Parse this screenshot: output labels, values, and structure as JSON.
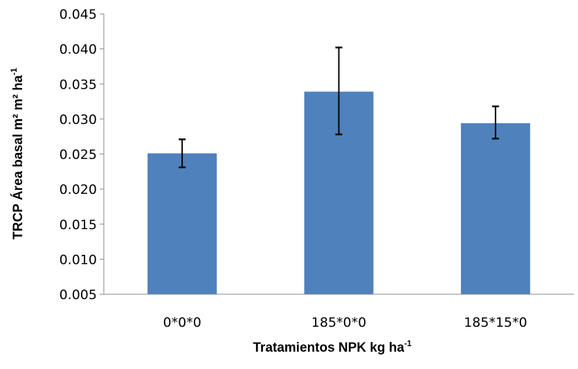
{
  "chart_data": {
    "type": "bar",
    "categories": [
      "0*0*0",
      "185*0*0",
      "185*15*0"
    ],
    "values": [
      0.0251,
      0.0339,
      0.0294
    ],
    "error_low": [
      0.0231,
      0.0278,
      0.0272
    ],
    "error_high": [
      0.0271,
      0.0402,
      0.0318
    ],
    "y_ticks": [
      "0.005",
      "0.010",
      "0.015",
      "0.020",
      "0.025",
      "0.030",
      "0.035",
      "0.040",
      "0.045"
    ],
    "ylim": [
      0.005,
      0.045
    ],
    "xlabel": {
      "main": "Tratamientos NPK kg ha",
      "sup": "-1"
    },
    "ylabel": {
      "main": "TRCP Área basal m² m² ha",
      "sup": "-1"
    },
    "grid": false,
    "legend": "none",
    "bar_color": "#4F81BD",
    "error_color": "#000000"
  }
}
